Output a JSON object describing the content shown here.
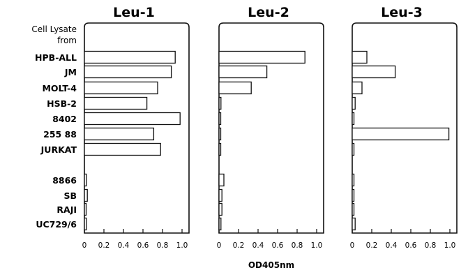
{
  "chart_data": {
    "type": "bar",
    "orientation": "horizontal",
    "row_header": [
      "Cell Lysate",
      "from"
    ],
    "categories": [
      "HPB-ALL",
      "JM",
      "MOLT-4",
      "HSB-2",
      "8402",
      "255 88",
      "JURKAT",
      "8866",
      "SB",
      "RAJI",
      "UC729/6"
    ],
    "xlabel": "OD405nm",
    "xlim": [
      0,
      1.1
    ],
    "xticks": [
      "0",
      "0.2",
      "0.4",
      "0.6",
      "0.8",
      "1.0"
    ],
    "grid": false,
    "legend": "none",
    "panels": [
      {
        "title": "Leu-1",
        "values": [
          0.93,
          0.89,
          0.75,
          0.64,
          0.98,
          0.71,
          0.78,
          0.02,
          0.03,
          0.01,
          0.02
        ]
      },
      {
        "title": "Leu-2",
        "values": [
          0.88,
          0.49,
          0.33,
          0.02,
          0.01,
          0.01,
          0.01,
          0.05,
          0.03,
          0.03,
          0.02
        ]
      },
      {
        "title": "Leu-3",
        "values": [
          0.15,
          0.44,
          0.1,
          0.03,
          0.01,
          0.99,
          0.01,
          0.01,
          0.01,
          0.01,
          0.03
        ]
      }
    ]
  }
}
